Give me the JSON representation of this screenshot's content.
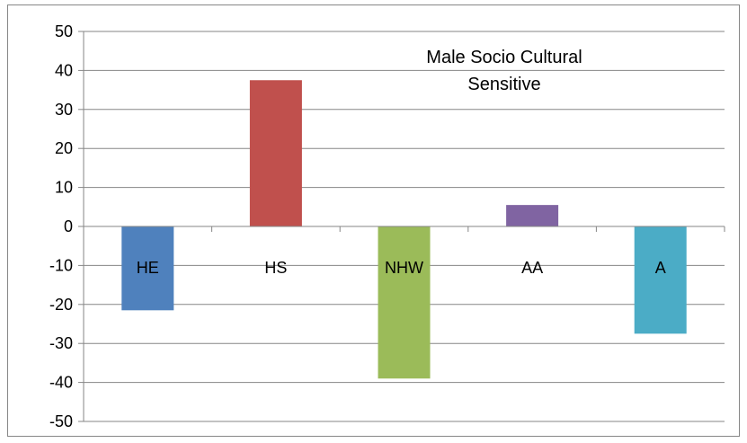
{
  "chart_data": {
    "type": "bar",
    "title": "Male Socio Cultural\nSensitive",
    "title_lines": [
      "Male Socio Cultural",
      "Sensitive"
    ],
    "categories": [
      "HE",
      "HS",
      "NHW",
      "AA",
      "A"
    ],
    "values": [
      -21.5,
      37.5,
      -39,
      5.5,
      -27.5
    ],
    "colors": [
      "#4f81bd",
      "#c0504d",
      "#9bbb59",
      "#8064a2",
      "#4bacc6"
    ],
    "ylim": [
      -50,
      50
    ],
    "yticks": [
      "50",
      "40",
      "30",
      "20",
      "10",
      "0",
      "-10",
      "-20",
      "-30",
      "-40",
      "-50"
    ],
    "grid": true,
    "xlabel": "",
    "ylabel": ""
  }
}
